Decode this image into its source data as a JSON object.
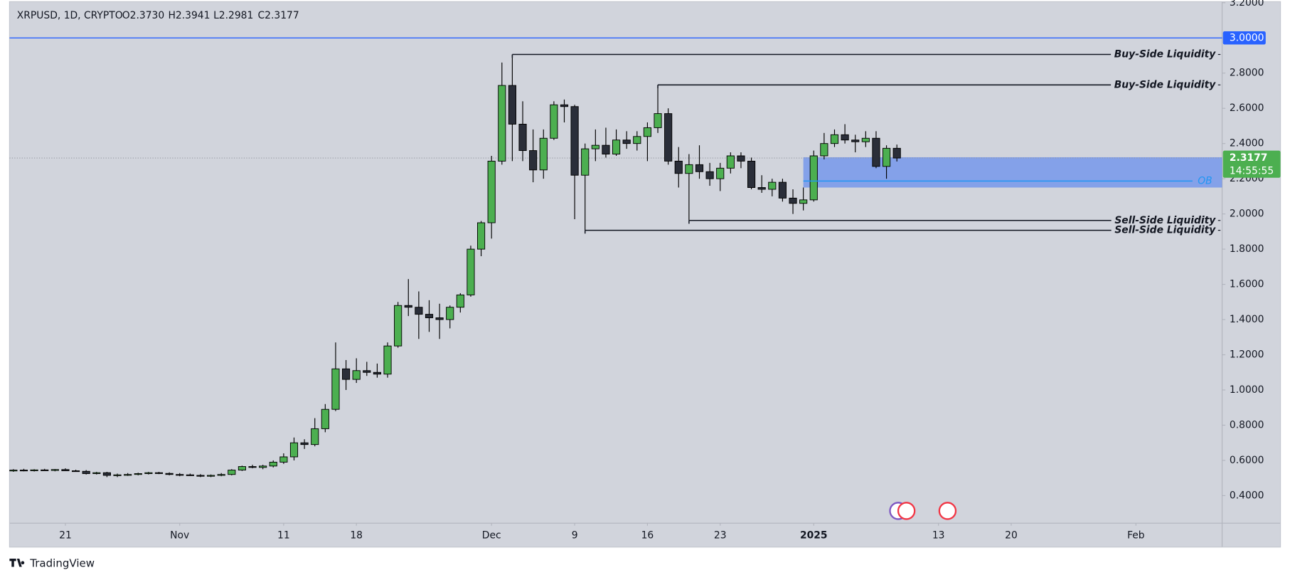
{
  "chart_data": {
    "type": "candlestick",
    "title": "XRPUSD, 1D, CRYPTO",
    "ohlc_legend": [
      "O2.3730",
      "H2.3941",
      "L2.2981",
      "C2.3177"
    ],
    "up_color": "#4caf50",
    "down_color": "#2a2e39",
    "x": [
      "2024-10-16",
      "2024-10-17",
      "2024-10-18",
      "2024-10-19",
      "2024-10-20",
      "2024-10-21",
      "2024-10-22",
      "2024-10-23",
      "2024-10-24",
      "2024-10-25",
      "2024-10-26",
      "2024-10-27",
      "2024-10-28",
      "2024-10-29",
      "2024-10-30",
      "2024-10-31",
      "2024-11-01",
      "2024-11-02",
      "2024-11-03",
      "2024-11-04",
      "2024-11-05",
      "2024-11-06",
      "2024-11-07",
      "2024-11-08",
      "2024-11-09",
      "2024-11-10",
      "2024-11-11",
      "2024-11-12",
      "2024-11-13",
      "2024-11-14",
      "2024-11-15",
      "2024-11-16",
      "2024-11-17",
      "2024-11-18",
      "2024-11-19",
      "2024-11-20",
      "2024-11-21",
      "2024-11-22",
      "2024-11-23",
      "2024-11-24",
      "2024-11-25",
      "2024-11-26",
      "2024-11-27",
      "2024-11-28",
      "2024-11-29",
      "2024-11-30",
      "2024-12-01",
      "2024-12-02",
      "2024-12-03",
      "2024-12-04",
      "2024-12-05",
      "2024-12-06",
      "2024-12-07",
      "2024-12-08",
      "2024-12-09",
      "2024-12-10",
      "2024-12-11",
      "2024-12-12",
      "2024-12-13",
      "2024-12-14",
      "2024-12-15",
      "2024-12-16",
      "2024-12-17",
      "2024-12-18",
      "2024-12-19",
      "2024-12-20",
      "2024-12-21",
      "2024-12-22",
      "2024-12-23",
      "2024-12-24",
      "2024-12-25",
      "2024-12-26",
      "2024-12-27",
      "2024-12-28",
      "2024-12-29",
      "2024-12-30",
      "2024-12-31",
      "2025-01-01",
      "2025-01-02",
      "2025-01-03",
      "2025-01-04",
      "2025-01-05",
      "2025-01-06",
      "2025-01-07",
      "2025-01-08",
      "2025-01-09"
    ],
    "open": [
      0.54,
      0.545,
      0.542,
      0.546,
      0.543,
      0.548,
      0.541,
      0.538,
      0.525,
      0.53,
      0.515,
      0.518,
      0.52,
      0.525,
      0.53,
      0.526,
      0.52,
      0.518,
      0.515,
      0.51,
      0.515,
      0.52,
      0.545,
      0.565,
      0.56,
      0.568,
      0.59,
      0.62,
      0.7,
      0.69,
      0.78,
      0.89,
      1.12,
      1.06,
      1.11,
      1.1,
      1.09,
      1.25,
      1.48,
      1.47,
      1.43,
      1.41,
      1.4,
      1.47,
      1.54,
      1.8,
      1.95,
      2.3,
      2.73,
      2.51,
      2.36,
      2.25,
      2.43,
      2.62,
      2.61,
      2.22,
      2.37,
      2.39,
      2.34,
      2.42,
      2.4,
      2.44,
      2.49,
      2.57,
      2.3,
      2.23,
      2.28,
      2.24,
      2.2,
      2.26,
      2.33,
      2.3,
      2.15,
      2.14,
      2.18,
      2.09,
      2.06,
      2.08,
      2.33,
      2.4,
      2.45,
      2.42,
      2.41,
      2.43,
      2.27,
      2.373
    ],
    "high": [
      0.55,
      0.552,
      0.55,
      0.552,
      0.551,
      0.555,
      0.547,
      0.545,
      0.535,
      0.535,
      0.525,
      0.528,
      0.53,
      0.535,
      0.535,
      0.532,
      0.528,
      0.525,
      0.522,
      0.52,
      0.528,
      0.55,
      0.57,
      0.575,
      0.575,
      0.6,
      0.64,
      0.73,
      0.72,
      0.84,
      0.92,
      1.27,
      1.17,
      1.18,
      1.16,
      1.15,
      1.27,
      1.5,
      1.63,
      1.56,
      1.51,
      1.49,
      1.48,
      1.55,
      1.82,
      1.96,
      2.33,
      2.86,
      2.906,
      2.64,
      2.48,
      2.48,
      2.64,
      2.65,
      2.62,
      2.4,
      2.48,
      2.49,
      2.48,
      2.47,
      2.47,
      2.52,
      2.733,
      2.6,
      2.38,
      2.34,
      2.39,
      2.29,
      2.29,
      2.35,
      2.35,
      2.32,
      2.22,
      2.2,
      2.2,
      2.14,
      2.15,
      2.36,
      2.46,
      2.48,
      2.51,
      2.45,
      2.47,
      2.47,
      2.39,
      2.3941
    ],
    "low": [
      0.535,
      0.538,
      0.537,
      0.541,
      0.538,
      0.54,
      0.535,
      0.52,
      0.52,
      0.505,
      0.505,
      0.512,
      0.515,
      0.52,
      0.522,
      0.515,
      0.51,
      0.512,
      0.505,
      0.505,
      0.51,
      0.515,
      0.54,
      0.555,
      0.55,
      0.56,
      0.58,
      0.6,
      0.665,
      0.68,
      0.76,
      0.88,
      1.0,
      1.04,
      1.08,
      1.07,
      1.07,
      1.24,
      1.42,
      1.29,
      1.33,
      1.29,
      1.35,
      1.44,
      1.53,
      1.76,
      1.86,
      2.28,
      2.3,
      2.3,
      2.18,
      2.2,
      2.42,
      2.52,
      1.97,
      1.907,
      2.3,
      2.32,
      2.33,
      2.37,
      2.36,
      2.3,
      2.46,
      2.28,
      2.15,
      1.963,
      2.2,
      2.16,
      2.13,
      2.23,
      2.26,
      2.14,
      2.12,
      2.1,
      2.07,
      2.0,
      2.02,
      2.07,
      2.31,
      2.38,
      2.4,
      2.35,
      2.38,
      2.26,
      2.2,
      2.2981
    ],
    "close": [
      0.545,
      0.542,
      0.546,
      0.543,
      0.548,
      0.541,
      0.538,
      0.525,
      0.53,
      0.515,
      0.518,
      0.52,
      0.525,
      0.53,
      0.526,
      0.52,
      0.518,
      0.515,
      0.51,
      0.515,
      0.52,
      0.545,
      0.565,
      0.56,
      0.568,
      0.59,
      0.62,
      0.7,
      0.69,
      0.78,
      0.89,
      1.12,
      1.06,
      1.11,
      1.1,
      1.09,
      1.25,
      1.48,
      1.47,
      1.43,
      1.41,
      1.4,
      1.47,
      1.54,
      1.8,
      1.95,
      2.3,
      2.73,
      2.51,
      2.36,
      2.25,
      2.43,
      2.62,
      2.61,
      2.22,
      2.37,
      2.39,
      2.34,
      2.42,
      2.4,
      2.44,
      2.49,
      2.57,
      2.3,
      2.23,
      2.28,
      2.24,
      2.2,
      2.26,
      2.33,
      2.3,
      2.15,
      2.14,
      2.18,
      2.09,
      2.06,
      2.08,
      2.33,
      2.4,
      2.45,
      2.42,
      2.41,
      2.43,
      2.27,
      2.373,
      2.3177
    ],
    "countdown": "14:55:55",
    "xlim": [
      "2024-10-15T15:00:00Z",
      "2025-02-09T07:00:00Z"
    ],
    "xticks": [
      {
        "value": "2024-10-21",
        "label": "21"
      },
      {
        "value": "2024-11-01",
        "label": "Nov"
      },
      {
        "value": "2024-11-11",
        "label": "11"
      },
      {
        "value": "2024-11-18",
        "label": "18"
      },
      {
        "value": "2024-12-01",
        "label": "Dec"
      },
      {
        "value": "2024-12-09",
        "label": "9"
      },
      {
        "value": "2024-12-16",
        "label": "16"
      },
      {
        "value": "2024-12-23",
        "label": "23"
      },
      {
        "value": "2025-01-01",
        "label": "2025"
      },
      {
        "value": "2025-01-13",
        "label": "13"
      },
      {
        "value": "2025-01-20",
        "label": "20"
      },
      {
        "value": "2025-02-01",
        "label": "Feb"
      }
    ],
    "ylim": [
      0.243,
      3.206
    ],
    "yticks": [
      {
        "value": 0.4,
        "label": "0.4000"
      },
      {
        "value": 0.6,
        "label": "0.6000"
      },
      {
        "value": 0.8,
        "label": "0.8000"
      },
      {
        "value": 1.0,
        "label": "1.0000"
      },
      {
        "value": 1.2,
        "label": "1.2000"
      },
      {
        "value": 1.4,
        "label": "1.4000"
      },
      {
        "value": 1.6,
        "label": "1.6000"
      },
      {
        "value": 1.8,
        "label": "1.8000"
      },
      {
        "value": 2.0,
        "label": "2.0000"
      },
      {
        "value": 2.2,
        "label": "2.2000"
      },
      {
        "value": 2.4,
        "label": "2.4000"
      },
      {
        "value": 2.6,
        "label": "2.6000"
      },
      {
        "value": 2.8,
        "label": "2.8000"
      },
      {
        "value": 3.0,
        "label": "3.0000"
      },
      {
        "value": 3.2,
        "label": "3.2000"
      }
    ],
    "grid": false,
    "horizontal_line": {
      "value": 3.0,
      "label": "3.0000",
      "color": "#2962ff"
    },
    "annotations": [
      {
        "label": "Buy-Side Liquidity",
        "value": 2.906,
        "start": "2024-12-03"
      },
      {
        "label": "Buy-Side Liquidity",
        "value": 2.733,
        "start": "2024-12-17"
      },
      {
        "label": "Sell-Side Liquidity",
        "value": 1.963,
        "start": "2024-12-20"
      },
      {
        "label": "Sell-Side Liquidity",
        "value": 1.907,
        "start": "2024-12-10"
      }
    ],
    "zone": {
      "label": "OB",
      "start": "2024-12-31",
      "low": 2.15,
      "high": 2.322,
      "line": 2.187,
      "color": "#5b86f0",
      "line_color": "#2196f3"
    }
  },
  "footer": "TradingView"
}
